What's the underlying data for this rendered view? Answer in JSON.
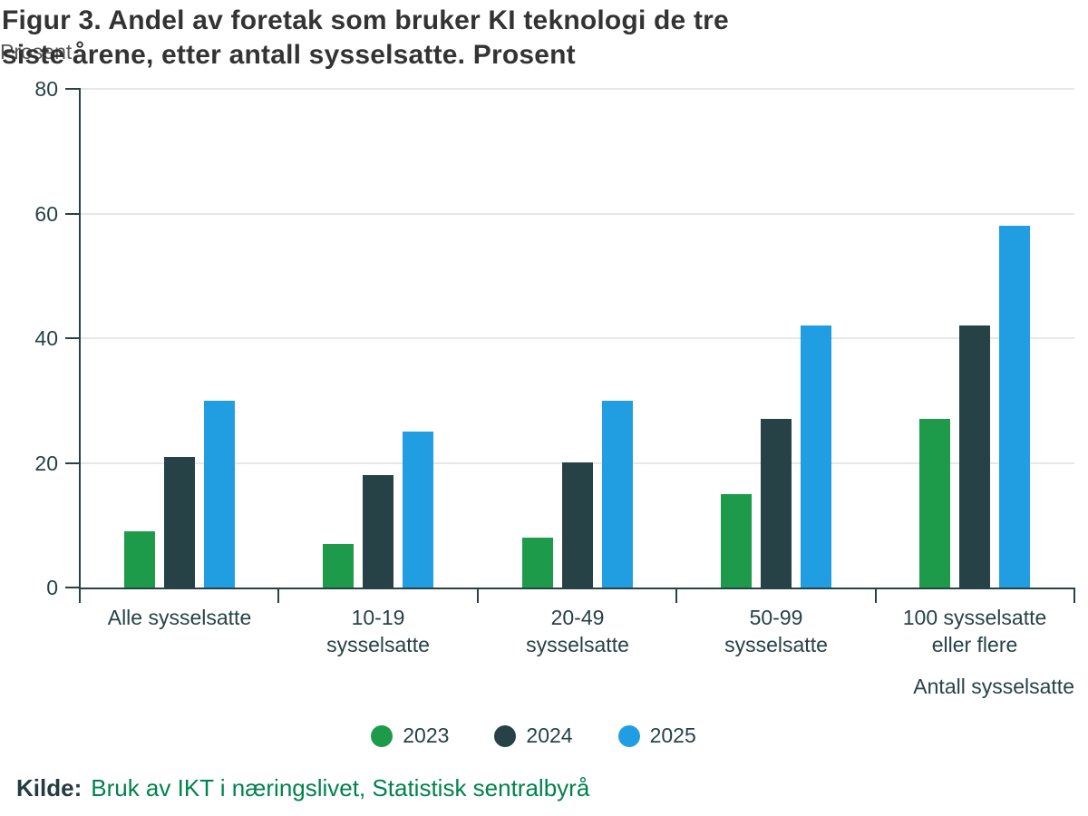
{
  "title": {
    "line1": "Figur 3. Andel av foretak som bruker KI teknologi de tre",
    "line2": "siste årene, etter antall sysselsatte. Prosent"
  },
  "y_axis_title": "Prosent",
  "x_axis_title": "Antall sysselsatte",
  "source": {
    "prefix": "Kilde:",
    "link_text": "Bruk av IKT i næringslivet, Statistisk sentralbyrå"
  },
  "legend": [
    {
      "label": "2023",
      "color": "#1d9a4a"
    },
    {
      "label": "2024",
      "color": "#274247"
    },
    {
      "label": "2025",
      "color": "#219ee2"
    }
  ],
  "colors": {
    "green_2023": "#1d9a4a",
    "dark_2024": "#274247",
    "blue_2025": "#219ee2",
    "axis": "#274247",
    "gridline": "#e7e7e7",
    "title_text": "#333333",
    "axis_label_gray": "#595959",
    "source_link_green": "#00824d"
  },
  "chart_data": {
    "type": "bar",
    "title": "Figur 3. Andel av foretak som bruker KI teknologi de tre siste årene, etter antall sysselsatte. Prosent",
    "categories": [
      "Alle sysselsatte",
      "10-19 sysselsatte",
      "20-49 sysselsatte",
      "50-99 sysselsatte",
      "100 sysselsatte eller flere"
    ],
    "category_display_lines": [
      "Alle sysselsatte",
      "10-19\nsysselsatte",
      "20-49\nsysselsatte",
      "50-99\nsysselsatte",
      "100 sysselsatte\neller flere"
    ],
    "series": [
      {
        "name": "2023",
        "color": "#1d9a4a",
        "values": [
          9,
          7,
          8,
          15,
          27
        ]
      },
      {
        "name": "2024",
        "color": "#274247",
        "values": [
          21,
          18,
          20,
          27,
          42
        ]
      },
      {
        "name": "2025",
        "color": "#219ee2",
        "values": [
          30,
          25,
          30,
          42,
          58
        ]
      }
    ],
    "xlabel": "Antall sysselsatte",
    "ylabel": "Prosent",
    "ylim": [
      0,
      80
    ],
    "yticks": [
      0,
      20,
      40,
      60,
      80
    ],
    "grid": true,
    "legend_position": "bottom"
  }
}
